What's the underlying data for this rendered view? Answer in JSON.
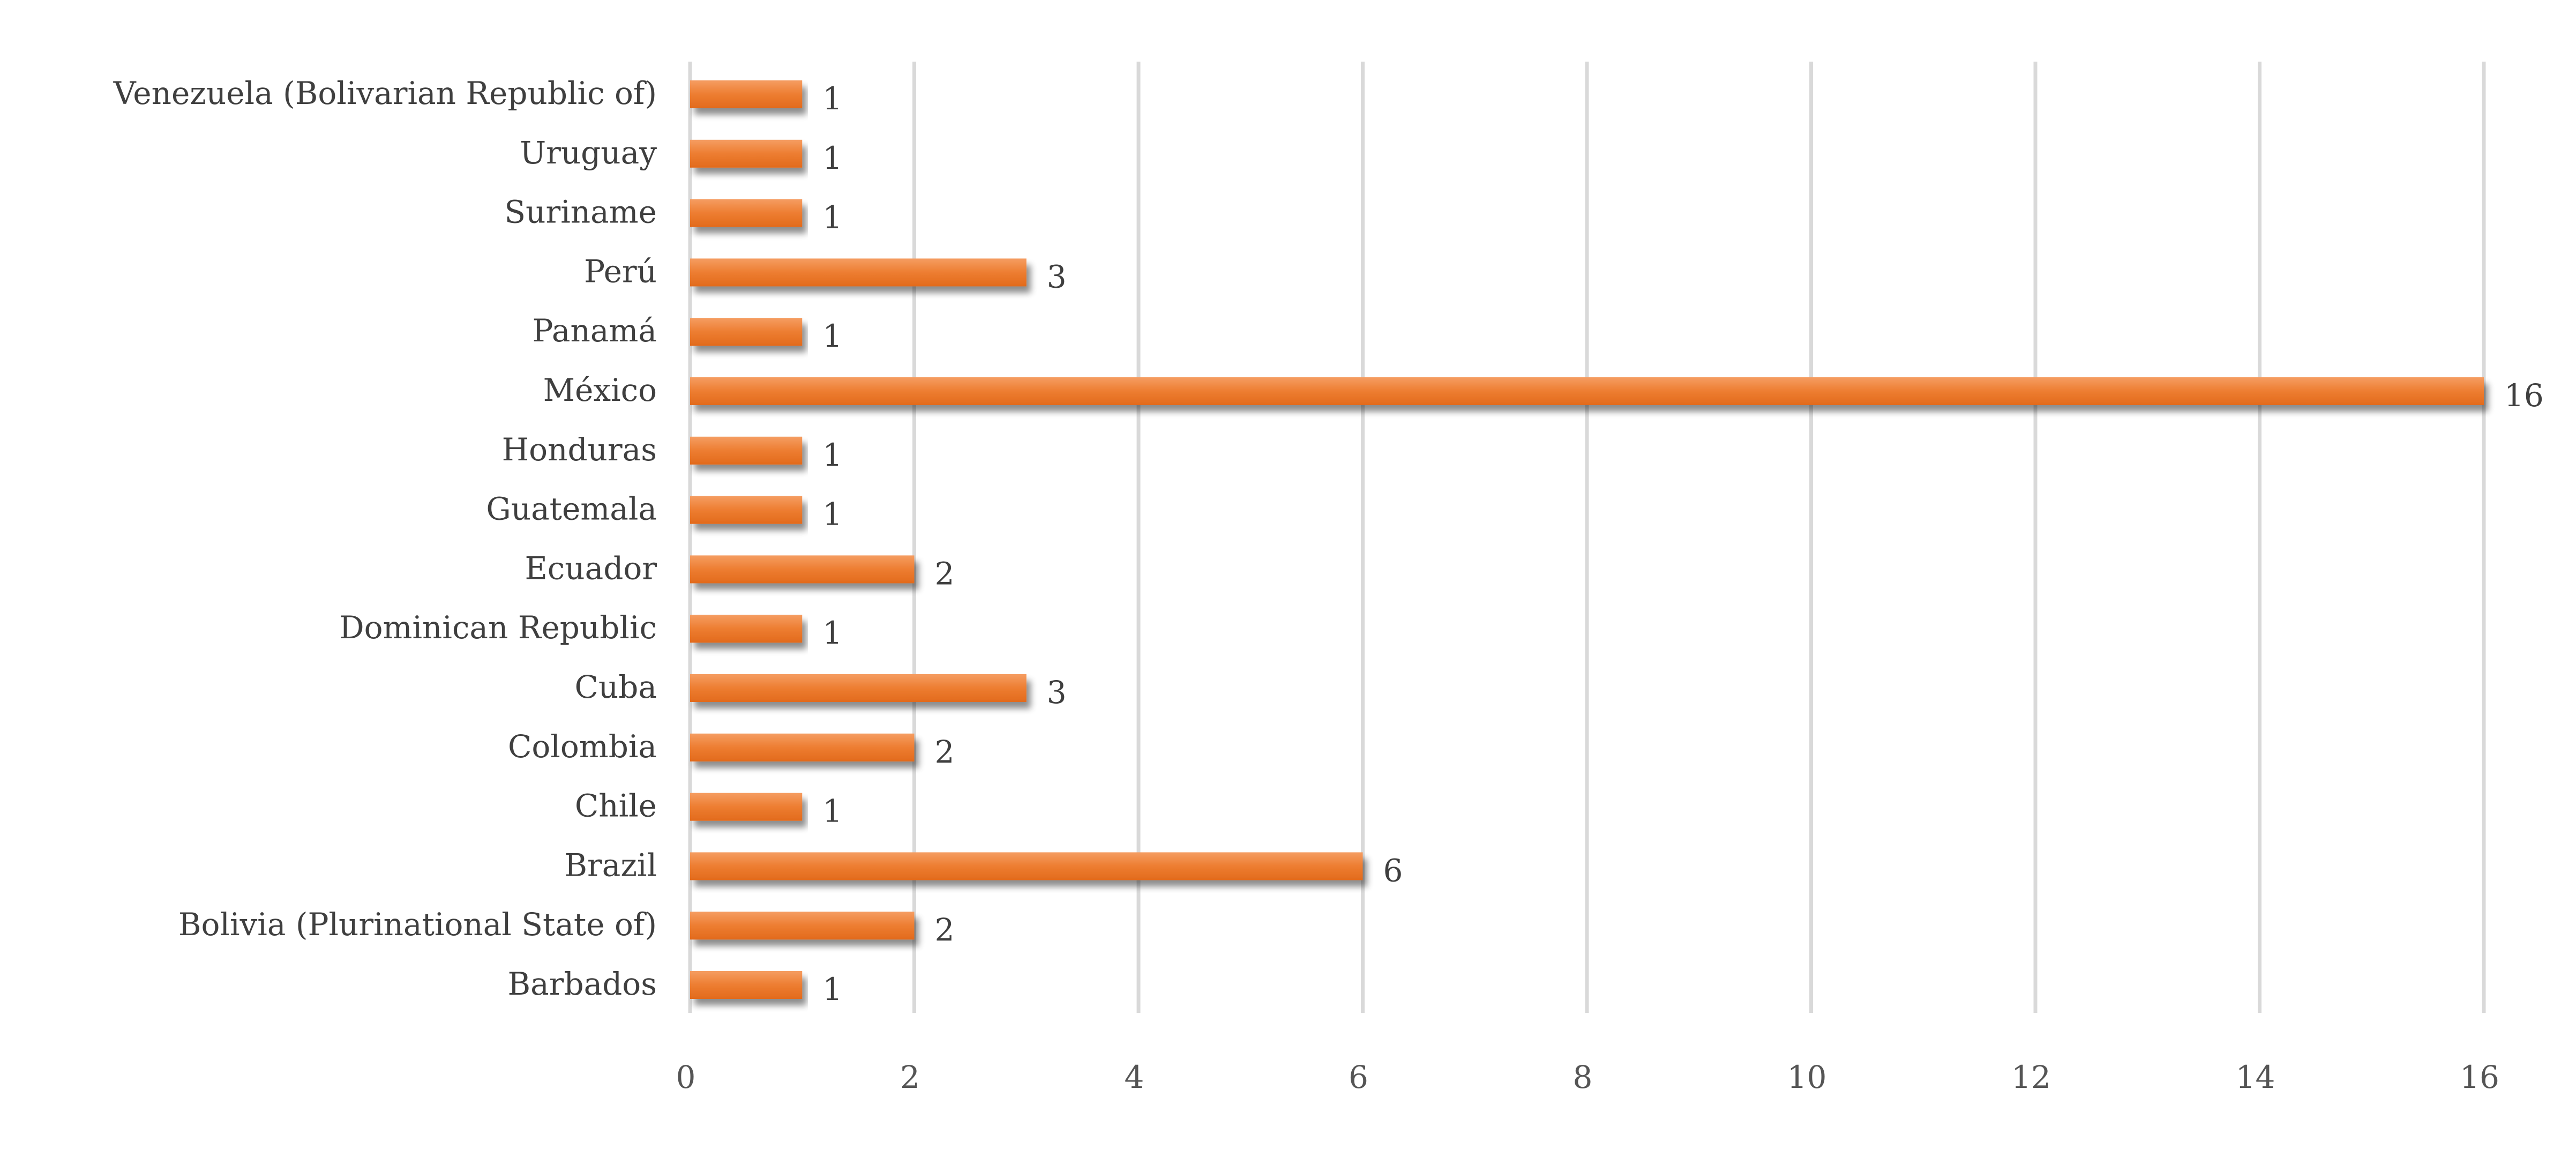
{
  "chart_data": {
    "type": "bar",
    "orientation": "horizontal",
    "categories": [
      "Venezuela (Bolivarian Republic of)",
      "Uruguay",
      "Suriname",
      "Perú",
      "Panamá",
      "México",
      "Honduras",
      "Guatemala",
      "Ecuador",
      "Dominican Republic",
      "Cuba",
      "Colombia",
      "Chile",
      "Brazil",
      "Bolivia (Plurinational State of)",
      "Barbados"
    ],
    "values": [
      1,
      1,
      1,
      3,
      1,
      16,
      1,
      1,
      2,
      1,
      3,
      2,
      1,
      6,
      2,
      1
    ],
    "data_labels": [
      "1",
      "1",
      "1",
      "3",
      "1",
      "16",
      "1",
      "1",
      "2",
      "1",
      "3",
      "2",
      "1",
      "6",
      "2",
      "1"
    ],
    "x_ticks": [
      "0",
      "2",
      "4",
      "6",
      "8",
      "10",
      "12",
      "14",
      "16"
    ],
    "title": "",
    "xlabel": "",
    "ylabel": "",
    "xlim": [
      0,
      16
    ],
    "grid": true,
    "legend": "none",
    "bar_color": "#ed7d31",
    "bar_highlight_color": "#f4a26b",
    "gridline_color": "#d9d9d9",
    "label_color": "#3f3f3f"
  }
}
